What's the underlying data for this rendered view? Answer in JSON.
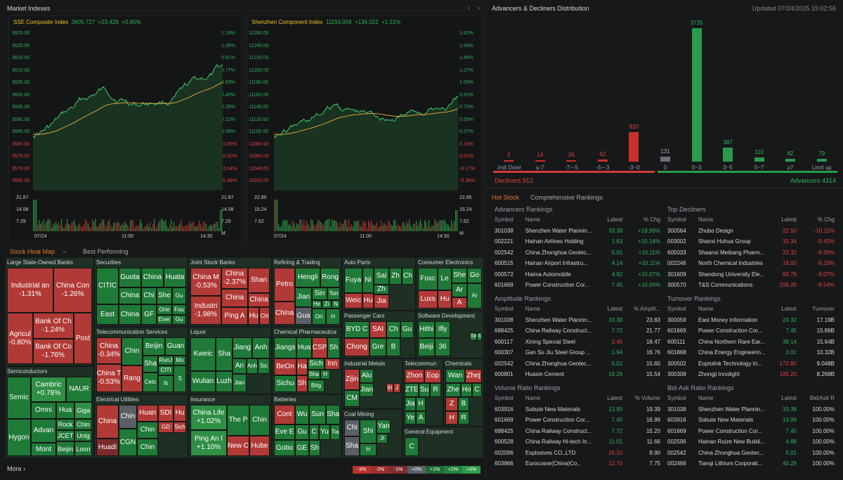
{
  "left_title": "Market Indexes",
  "index1": {
    "name": "SSE Composite Index",
    "value": "3605.727",
    "chg": "+23.429",
    "pct": "+0.65%",
    "left_axis": [
      "3625.00",
      "3620.00",
      "3615.00",
      "3610.00",
      "3605.00",
      "3600.00",
      "3595.00",
      "3590.00",
      "3585.00",
      "3580.00",
      "3575.00",
      "3570.00",
      "3565.00"
    ],
    "right_axis": [
      "1.19%",
      "1.05%",
      "0.91%",
      "0.77%",
      "0.63%",
      "0.49%",
      "0.35%",
      "0.22%",
      "0.08%",
      "-0.06%",
      "-0.20%",
      "-0.34%",
      "-0.48%"
    ],
    "vol_axis": [
      "21.87",
      "14.58",
      "7.29"
    ],
    "vol_axis_r": [
      "21.87",
      "14.58",
      "7.29",
      "M"
    ],
    "times": [
      "07/24",
      "11:00",
      "14:30"
    ]
  },
  "index2": {
    "name": "Shenzhen Component Index",
    "value": "11193.059",
    "chg": "+134.022",
    "pct": "+1.21%",
    "left_axis": [
      "11260.00",
      "11240.00",
      "11220.00",
      "11200.00",
      "11180.00",
      "11160.00",
      "11140.00",
      "11120.00",
      "11100.00",
      "11080.00",
      "11060.00",
      "11040.00",
      "11020.00"
    ],
    "right_axis": [
      "1.82%",
      "1.64%",
      "1.46%",
      "1.27%",
      "1.09%",
      "0.91%",
      "0.73%",
      "0.55%",
      "0.37%",
      "0.19%",
      "0.01%",
      "-0.17%",
      "-0.35%"
    ],
    "vol_axis": [
      "22.85",
      "15.24",
      "7.62"
    ],
    "vol_axis_r": [
      "22.85",
      "15.24",
      "7.62",
      "M"
    ],
    "times": [
      "07/24",
      "11:00",
      "14:30"
    ]
  },
  "tabs": {
    "heatmap": "Stock Heat Map",
    "best": "Best Performing"
  },
  "heatmap": {
    "large_banks": {
      "title": "Large State-Owned Banks",
      "c1": [
        "Industrial an",
        "-1.31%"
      ],
      "c2": [
        "China Con",
        "-1.26%"
      ],
      "c3": [
        "Agricul",
        "-0.80%"
      ],
      "c4": [
        "Bank Of Ch",
        "-1.24%"
      ],
      "c5": [
        "Bank Of Co",
        "-1.76%"
      ],
      "c6": "Post"
    },
    "securities": {
      "title": "Securities",
      "cells": [
        "CITIC",
        "Guota",
        "China",
        "Huata",
        "China",
        "Chi",
        "She",
        "Gu",
        "East",
        "China",
        "GF",
        "Orie",
        "Fou",
        "Ever",
        "Gu"
      ]
    },
    "joint": {
      "title": "Joint Stock Banks",
      "c1": [
        "China M",
        "-0.53%"
      ],
      "c2": [
        "China",
        "-2.37%"
      ],
      "c3": "Shan",
      "c4": [
        "Industri",
        "-1.98%"
      ],
      "c5": "China",
      "c6": "China",
      "c7": "Ping A",
      "c8": "Hu",
      "c9": "Chi"
    },
    "refining": {
      "title": "Refining & Trading",
      "cells": [
        "Petro",
        "Hengli",
        "Rong",
        "Jian",
        "Sin",
        "Ton",
        "He",
        "Zi",
        "N",
        "China",
        "Gua",
        "Ori",
        "H"
      ]
    },
    "autoparts": {
      "title": "Auto Parts",
      "cells": [
        "Fuya",
        "Ni",
        "Sai",
        "Zh",
        "Ch",
        "Zh",
        "Weic",
        "Hu",
        "Jia"
      ]
    },
    "consumer": {
      "title": "Consumer Electronics",
      "cells": [
        "Foxc",
        "Le",
        "She",
        "Go",
        "Ar",
        "Luxs",
        "Hu",
        "A",
        "Ar"
      ]
    },
    "telecom": {
      "title": "Telecommunication Services",
      "c1": [
        "China",
        "-0.34%"
      ],
      "c2": [
        "China T",
        "-0.53%"
      ],
      "cells": [
        "Chin",
        "Beijin",
        "Guan",
        "Sha",
        "RunJ",
        "Mo",
        "CITI",
        "Rang",
        "Cetc",
        "N",
        "S"
      ]
    },
    "liquor": {
      "title": "Liquor",
      "cells": [
        "Kweic",
        "Sha",
        "Jiang",
        "Anh",
        "An",
        "Anh",
        "Sic",
        "Wulian",
        "Luzh",
        "Jian"
      ]
    },
    "chempharm": {
      "title": "Chemical Pharmaceutica",
      "cells": [
        "Jiangs",
        "Hua",
        "CSP",
        "Sh",
        "BeOn",
        "Ha",
        "Sich",
        "Inn",
        "Sha",
        "H",
        "Sichu",
        "Sh",
        "Brig"
      ]
    },
    "passenger": {
      "title": "Passenger Cars",
      "cells": [
        "BYD C",
        "SAI",
        "Ch",
        "Gu",
        "Chong",
        "Gre",
        "B"
      ]
    },
    "software": {
      "title": "Software Development",
      "cells": [
        "Hithi",
        "Ifly",
        "Sa",
        "S",
        "Beiji",
        "36"
      ]
    },
    "semis": {
      "title": "Semiconductors",
      "c1": [
        "Cambric",
        "+0.78%"
      ],
      "cells": [
        "Semic",
        "NAUR",
        "Omni",
        "Hua",
        "Giga",
        "Rock",
        "Chin",
        "Advan",
        "JCET",
        "Unig",
        "Hygon",
        "Mont",
        "Beijin",
        "Loon"
      ]
    },
    "electric": {
      "title": "Electrical Utilities",
      "cells": [
        "China",
        "Chin",
        "Huan",
        "SDI",
        "Hu",
        "GD",
        "Sich",
        "Chin",
        "Huadi",
        "CGN",
        "Chin"
      ]
    },
    "insurance": {
      "title": "Insurance",
      "c1": [
        "China Life",
        "+1.02%"
      ],
      "c2": [
        "Ping An I",
        "+1.10%"
      ],
      "cells": [
        "The P",
        "Chin",
        "New C",
        "Hube"
      ]
    },
    "batteries": {
      "title": "Batteries",
      "cells": [
        "Cont",
        "Wu",
        "Sun",
        "Sha",
        "Eve E",
        "Gu",
        "C",
        "Yu",
        "Tia",
        "Gotio",
        "GE",
        "Sh"
      ]
    },
    "indmetals": {
      "title": "Industrial Metals",
      "cells": [
        "Zijin",
        "Alu",
        "Jian",
        "In",
        "J",
        "CM"
      ]
    },
    "telecomm": {
      "title": "Telecommun",
      "cells": [
        "Zhon",
        "Eop",
        "ZTE",
        "Su",
        "R",
        "Jia",
        "H",
        "Ye",
        "A"
      ]
    },
    "chemicals": {
      "title": "Chemicals",
      "cells": [
        "Wan",
        "Zhej",
        "Zhe",
        "Ho",
        "C",
        "Z",
        "B",
        "H",
        "R"
      ]
    },
    "coal": {
      "title": "Coal Mining",
      "cells": [
        "Chi",
        "Shi",
        "Yan",
        "Ji",
        "Sha",
        "H"
      ]
    },
    "genequip": {
      "title": "General Equipment",
      "cells": [
        "C"
      ]
    }
  },
  "more": "More",
  "legend": [
    "-3%",
    "-2%",
    "-1%",
    "+0%",
    "+1%",
    "+2%",
    "+3%"
  ],
  "dist": {
    "title": "Advancers & Decliners Distribution",
    "updated": "Updated 07/24/2025 15:02:56",
    "values": [
      "2",
      "14",
      "26",
      "52",
      "820",
      "131",
      "3735",
      "387",
      "110",
      "82",
      "79"
    ],
    "labels": [
      ".imit Dowr",
      "≤-7",
      "-7~-5",
      "-5~-3",
      "-3~0",
      "0",
      "0~3",
      "3~5",
      "5~7",
      "≥7",
      "Limit up"
    ],
    "decliners": "Decliners 912",
    "advancers": "Advancers 4314"
  },
  "tabs2": {
    "hot": "Hot Stock",
    "comp": "Comprehensive Rankings"
  },
  "adv": {
    "title": "Advancers Rankings",
    "cols": [
      "Symbol",
      "Name",
      "Latest",
      "% Chg"
    ],
    "rows": [
      [
        "301038",
        "Shenzhen Water Plannin...",
        "33.38",
        "+19.99%"
      ],
      [
        "002221",
        "Hainan Airlines Holding",
        "1.63",
        "+10.14%"
      ],
      [
        "002542",
        "China Zhonghua Geotec...",
        "5.01",
        "+10.11%"
      ],
      [
        "600515",
        "Hainan Airport Infrastru...",
        "4.14",
        "+10.11%"
      ],
      [
        "000572",
        "Haima Automobile",
        "4.92",
        "+10.07%"
      ],
      [
        "601669",
        "Power Construction Cor...",
        "7.45",
        "+10.04%"
      ]
    ]
  },
  "dec": {
    "title": "Top Decliners",
    "cols": [
      "Symbol",
      "Name",
      "Latest",
      "% Chg"
    ],
    "rows": [
      [
        "300564",
        "Zhubo Design",
        "22.50",
        "-10.11%"
      ],
      [
        "003002",
        "Shanxi Huhua Group",
        "31.34",
        "-9.45%"
      ],
      [
        "605033",
        "Shaanxi Meibang Pharm...",
        "23.32",
        "-9.30%"
      ],
      [
        "002246",
        "North Chemical Industries",
        "18.00",
        "-9.23%"
      ],
      [
        "301609",
        "Shandong University Ele...",
        "60.79",
        "-9.07%"
      ],
      [
        "300570",
        "T&S Communications",
        "104.26",
        "-8.54%"
      ]
    ]
  },
  "amp": {
    "title": "Amplitude Rankings",
    "cols": [
      "Symbol",
      "Name",
      "Latest",
      "% Amplit..."
    ],
    "rows": [
      [
        "301038",
        "Shenzhen Water Plannin...",
        "33.38",
        "23.83"
      ],
      [
        "688425",
        "China Railway Construct...",
        "7.72",
        "21.77"
      ],
      [
        "600117",
        "Xining Special Steel",
        "3.45",
        "18.47"
      ],
      [
        "600307",
        "Gan Su Jiu Steel Group ...",
        "1.94",
        "16.76"
      ],
      [
        "002542",
        "China Zhonghua Geotec...",
        "5.01",
        "15.60"
      ],
      [
        "600801",
        "Huaxin Cement",
        "18.28",
        "15.54"
      ]
    ]
  },
  "turn": {
    "title": "Turnover Rankings",
    "cols": [
      "Symbol",
      "Name",
      "Latest",
      "Turnover"
    ],
    "rows": [
      [
        "300059",
        "East Money Information",
        "24.32",
        "17.19B"
      ],
      [
        "601669",
        "Power Construction Cor...",
        "7.45",
        "15.86B"
      ],
      [
        "600111",
        "China Northern Rare Ear...",
        "38.14",
        "15.64B"
      ],
      [
        "601868",
        "China Energy Engineerin...",
        "3.01",
        "10.32B"
      ],
      [
        "300502",
        "Eoptolink Technology In...",
        "172.80",
        "9.048B"
      ],
      [
        "300308",
        "Zhongji Innolight",
        "185.20",
        "8.268B"
      ]
    ]
  },
  "vol": {
    "title": "Volume Ratio Rankings",
    "cols": [
      "Symbol",
      "Name",
      "Latest",
      "% Volume"
    ],
    "rows": [
      [
        "603916",
        "Sobute New Materials",
        "13.99",
        "19.39"
      ],
      [
        "601669",
        "Power Construction Cor...",
        "7.45",
        "16.99"
      ],
      [
        "688425",
        "China Railway Construct...",
        "7.72",
        "15.20"
      ],
      [
        "600528",
        "China Railway Hi-tech In...",
        "11.01",
        "11.66"
      ],
      [
        "002096",
        "Explosives CO.,LTD",
        "16.10",
        "8.90"
      ],
      [
        "603966",
        "Eurocrane(China)Co.,",
        "12.70",
        "7.75"
      ]
    ]
  },
  "bid": {
    "title": "Bid-Ask Ratio Rankings",
    "cols": [
      "Symbol",
      "Name",
      "Latest",
      "Bid/Ask R"
    ],
    "rows": [
      [
        "301038",
        "Shenzhen Water Plannin...",
        "33.38",
        "100.00%"
      ],
      [
        "603916",
        "Sobute New Materials",
        "13.99",
        "100.00%"
      ],
      [
        "601669",
        "Power Construction Cor...",
        "7.45",
        "100.00%"
      ],
      [
        "002596",
        "Hainan Ruize New Buildi...",
        "4.88",
        "100.00%"
      ],
      [
        "002542",
        "China Zhonghua Geotec...",
        "5.01",
        "100.00%"
      ],
      [
        "002466",
        "Tianqi Lithium Corporati...",
        "40.29",
        "100.00%"
      ]
    ]
  },
  "colors": {
    "up": "#2fb35b",
    "down": "#e2433d"
  }
}
